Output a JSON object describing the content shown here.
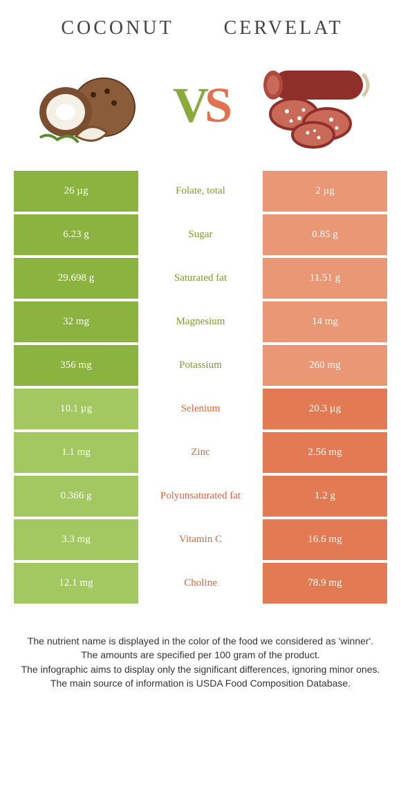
{
  "titles": {
    "left": "COCONUT",
    "right": "CERVELAT"
  },
  "vs": {
    "v": "V",
    "s": "S"
  },
  "colors": {
    "left_on": "#8bb33f",
    "left_off": "#a3c861",
    "right_on": "#e27a54",
    "right_off": "#ea9776",
    "mid_green": "#7a9a2e",
    "mid_orange": "#d6683f"
  },
  "rows": [
    {
      "left": "26 µg",
      "mid": "Folate, total",
      "right": "2 µg",
      "winner": "left"
    },
    {
      "left": "6.23 g",
      "mid": "Sugar",
      "right": "0.85 g",
      "winner": "left"
    },
    {
      "left": "29.698 g",
      "mid": "Saturated fat",
      "right": "11.51 g",
      "winner": "left"
    },
    {
      "left": "32 mg",
      "mid": "Magnesium",
      "right": "14 mg",
      "winner": "left"
    },
    {
      "left": "356 mg",
      "mid": "Potassium",
      "right": "260 mg",
      "winner": "left"
    },
    {
      "left": "10.1 µg",
      "mid": "Selenium",
      "right": "20.3 µg",
      "winner": "right"
    },
    {
      "left": "1.1 mg",
      "mid": "Zinc",
      "right": "2.56 mg",
      "winner": "right"
    },
    {
      "left": "0.366 g",
      "mid": "Polyunsaturated fat",
      "right": "1.2 g",
      "winner": "right"
    },
    {
      "left": "3.3 mg",
      "mid": "Vitamin C",
      "right": "16.6 mg",
      "winner": "right"
    },
    {
      "left": "12.1 mg",
      "mid": "Choline",
      "right": "78.9 mg",
      "winner": "right"
    }
  ],
  "footer": [
    "The nutrient name is displayed in the color of the food we considered as 'winner'.",
    "The amounts are specified per 100 gram of the product.",
    "The infographic aims to display only the significant differences, ignoring minor ones.",
    "The main source of information is USDA Food Composition Database."
  ]
}
